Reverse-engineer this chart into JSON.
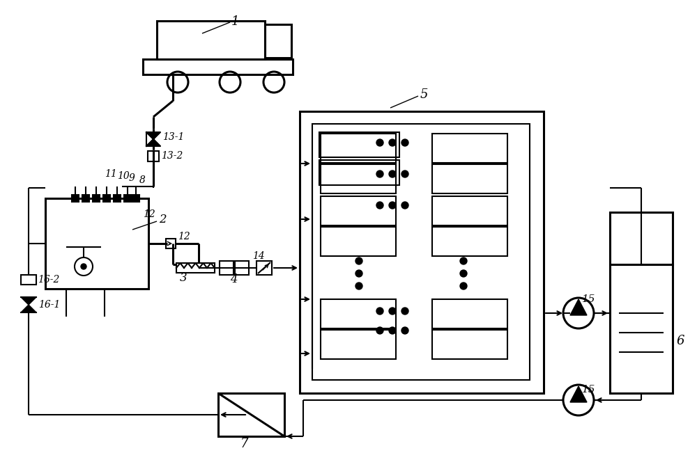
{
  "bg": "#ffffff",
  "lc": "#000000",
  "lw": 1.5,
  "lw2": 2.2
}
